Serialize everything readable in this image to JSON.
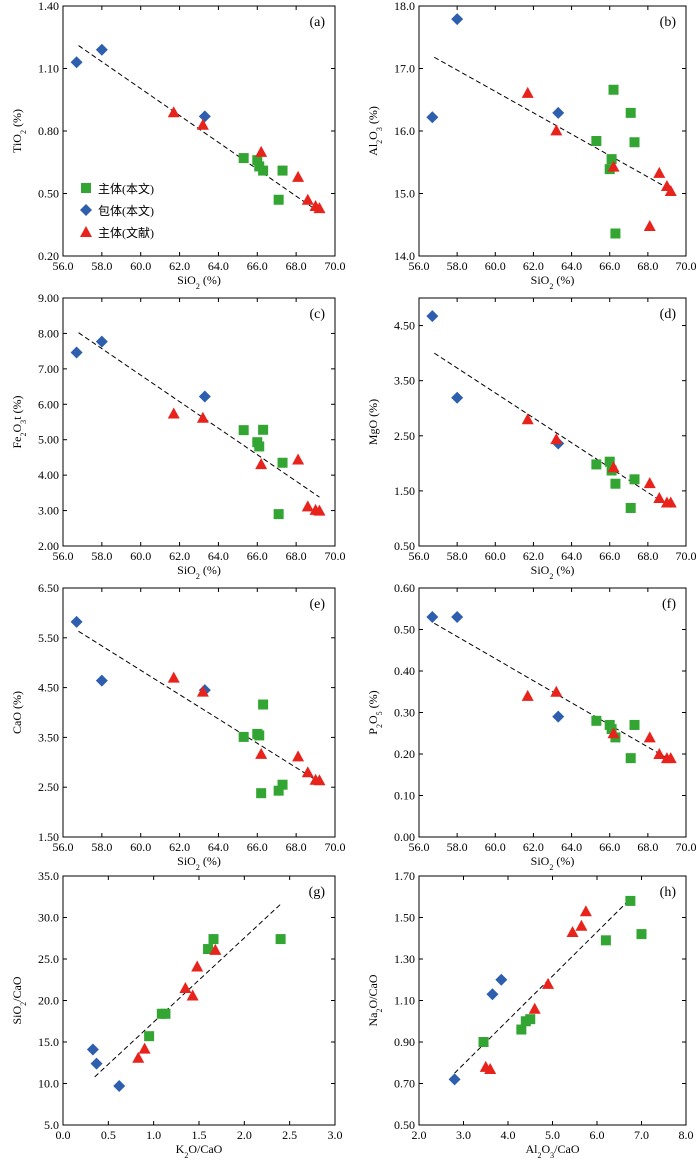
{
  "legend": {
    "entries": [
      {
        "label": "主体(本文)",
        "marker": "square",
        "color": "#33a532"
      },
      {
        "label": "包体(本文)",
        "marker": "diamond",
        "color": "#2e5fae"
      },
      {
        "label": "主体(文献)",
        "marker": "triangle",
        "color": "#e8231c"
      }
    ]
  },
  "chart_data": [
    {
      "type": "scatter",
      "panel": "(a)",
      "xlabel": "SiO₂ (%)",
      "ylabel": "TiO₂ (%)",
      "xlim": [
        56.0,
        70.0
      ],
      "ylim": [
        0.2,
        1.4
      ],
      "xticks": [
        56.0,
        58.0,
        60.0,
        62.0,
        64.0,
        66.0,
        68.0,
        70.0
      ],
      "yticks": [
        0.2,
        0.5,
        0.8,
        1.1,
        1.4
      ],
      "xticklabels": [
        "56.0",
        "58.0",
        "60.0",
        "62.0",
        "64.0",
        "66.0",
        "68.0",
        "70.0"
      ],
      "yticklabels": [
        "0.20",
        "0.50",
        "0.80",
        "1.10",
        "1.40"
      ],
      "trendline": [
        [
          56.8,
          1.21
        ],
        [
          69.2,
          0.41
        ]
      ],
      "series": [
        {
          "name": "主体(本文)",
          "marker": "square",
          "points": [
            [
              65.3,
              0.67
            ],
            [
              66.0,
              0.66
            ],
            [
              66.1,
              0.63
            ],
            [
              66.3,
              0.61
            ],
            [
              67.1,
              0.47
            ],
            [
              67.3,
              0.61
            ]
          ]
        },
        {
          "name": "包体(本文)",
          "marker": "diamond",
          "points": [
            [
              56.7,
              1.13
            ],
            [
              58.0,
              1.19
            ],
            [
              63.3,
              0.87
            ]
          ]
        },
        {
          "name": "主体(文献)",
          "marker": "triangle",
          "points": [
            [
              61.7,
              0.89
            ],
            [
              63.2,
              0.83
            ],
            [
              66.2,
              0.7
            ],
            [
              68.1,
              0.58
            ],
            [
              68.6,
              0.47
            ],
            [
              69.0,
              0.44
            ],
            [
              69.2,
              0.43
            ]
          ]
        }
      ]
    },
    {
      "type": "scatter",
      "panel": "(b)",
      "xlabel": "SiO₂ (%)",
      "ylabel": "Al₂O₃ (%)",
      "xlim": [
        56.0,
        70.0
      ],
      "ylim": [
        14.0,
        18.0
      ],
      "xticks": [
        56.0,
        58.0,
        60.0,
        62.0,
        64.0,
        66.0,
        68.0,
        70.0
      ],
      "yticks": [
        14.0,
        15.0,
        16.0,
        17.0,
        18.0
      ],
      "xticklabels": [
        "56.0",
        "58.0",
        "60.0",
        "62.0",
        "64.0",
        "66.0",
        "68.0",
        "70.0"
      ],
      "yticklabels": [
        "14.0",
        "15.0",
        "16.0",
        "17.0",
        "18.0"
      ],
      "trendline": [
        [
          56.8,
          17.18
        ],
        [
          69.2,
          15.06
        ]
      ],
      "series": [
        {
          "name": "主体(本文)",
          "marker": "square",
          "points": [
            [
              65.3,
              15.84
            ],
            [
              66.0,
              15.39
            ],
            [
              66.1,
              15.55
            ],
            [
              66.2,
              16.66
            ],
            [
              66.3,
              14.36
            ],
            [
              67.1,
              16.29
            ],
            [
              67.3,
              15.82
            ]
          ]
        },
        {
          "name": "包体(本文)",
          "marker": "diamond",
          "points": [
            [
              56.7,
              16.22
            ],
            [
              58.0,
              17.79
            ],
            [
              63.3,
              16.29
            ]
          ]
        },
        {
          "name": "主体(文献)",
          "marker": "triangle",
          "points": [
            [
              61.7,
              16.61
            ],
            [
              63.2,
              16.01
            ],
            [
              66.2,
              15.43
            ],
            [
              68.1,
              14.48
            ],
            [
              68.6,
              15.33
            ],
            [
              69.0,
              15.12
            ],
            [
              69.2,
              15.04
            ]
          ]
        }
      ]
    },
    {
      "type": "scatter",
      "panel": "(c)",
      "xlabel": "SiO₂ (%)",
      "ylabel": "Fe₂O₃t (%)",
      "xlim": [
        56.0,
        70.0
      ],
      "ylim": [
        2.0,
        9.0
      ],
      "xticks": [
        56.0,
        58.0,
        60.0,
        62.0,
        64.0,
        66.0,
        68.0,
        70.0
      ],
      "yticks": [
        2.0,
        3.0,
        4.0,
        5.0,
        6.0,
        7.0,
        8.0,
        9.0
      ],
      "xticklabels": [
        "56.0",
        "58.0",
        "60.0",
        "62.0",
        "64.0",
        "66.0",
        "68.0",
        "70.0"
      ],
      "yticklabels": [
        "2.00",
        "3.00",
        "4.00",
        "5.00",
        "6.00",
        "7.00",
        "8.00",
        "9.00"
      ],
      "trendline": [
        [
          56.8,
          8.02
        ],
        [
          69.2,
          3.38
        ]
      ],
      "series": [
        {
          "name": "主体(本文)",
          "marker": "square",
          "points": [
            [
              65.3,
              5.27
            ],
            [
              66.0,
              4.93
            ],
            [
              66.1,
              4.81
            ],
            [
              66.3,
              5.28
            ],
            [
              67.1,
              2.9
            ],
            [
              67.3,
              4.35
            ]
          ]
        },
        {
          "name": "包体(本文)",
          "marker": "diamond",
          "points": [
            [
              56.7,
              7.46
            ],
            [
              58.0,
              7.77
            ],
            [
              63.3,
              6.22
            ]
          ]
        },
        {
          "name": "主体(文献)",
          "marker": "triangle",
          "points": [
            [
              61.7,
              5.74
            ],
            [
              63.2,
              5.62
            ],
            [
              66.2,
              4.31
            ],
            [
              68.1,
              4.44
            ],
            [
              68.6,
              3.12
            ],
            [
              69.0,
              3.02
            ],
            [
              69.2,
              3.0
            ]
          ]
        }
      ]
    },
    {
      "type": "scatter",
      "panel": "(d)",
      "xlabel": "SiO₂ (%)",
      "ylabel": "MgO (%)",
      "xlim": [
        56.0,
        70.0
      ],
      "ylim": [
        0.5,
        5.0
      ],
      "xticks": [
        56.0,
        58.0,
        60.0,
        62.0,
        64.0,
        66.0,
        68.0,
        70.0
      ],
      "yticks": [
        0.5,
        1.5,
        2.5,
        3.5,
        4.5
      ],
      "xticklabels": [
        "56.0",
        "58.0",
        "60.0",
        "62.0",
        "64.0",
        "66.0",
        "68.0",
        "70.0"
      ],
      "yticklabels": [
        "0.50",
        "1.50",
        "2.50",
        "3.50",
        "4.50"
      ],
      "trendline": [
        [
          56.8,
          4.0
        ],
        [
          69.2,
          1.2
        ]
      ],
      "series": [
        {
          "name": "主体(本文)",
          "marker": "square",
          "points": [
            [
              65.3,
              1.98
            ],
            [
              66.0,
              2.03
            ],
            [
              66.1,
              1.87
            ],
            [
              66.3,
              1.63
            ],
            [
              67.1,
              1.19
            ],
            [
              67.3,
              1.71
            ]
          ]
        },
        {
          "name": "包体(本文)",
          "marker": "diamond",
          "points": [
            [
              56.7,
              4.67
            ],
            [
              58.0,
              3.19
            ],
            [
              63.3,
              2.36
            ]
          ]
        },
        {
          "name": "主体(文献)",
          "marker": "triangle",
          "points": [
            [
              61.7,
              2.8
            ],
            [
              63.2,
              2.44
            ],
            [
              66.2,
              1.93
            ],
            [
              68.1,
              1.64
            ],
            [
              68.6,
              1.37
            ],
            [
              69.0,
              1.29
            ],
            [
              69.2,
              1.29
            ]
          ]
        }
      ]
    },
    {
      "type": "scatter",
      "panel": "(e)",
      "xlabel": "SiO₂ (%)",
      "ylabel": "CaO (%)",
      "xlim": [
        56.0,
        70.0
      ],
      "ylim": [
        1.5,
        6.5
      ],
      "xticks": [
        56.0,
        58.0,
        60.0,
        62.0,
        64.0,
        66.0,
        68.0,
        70.0
      ],
      "yticks": [
        1.5,
        2.5,
        3.5,
        4.5,
        5.5,
        6.5
      ],
      "xticklabels": [
        "56.0",
        "58.0",
        "60.0",
        "62.0",
        "64.0",
        "66.0",
        "68.0",
        "70.0"
      ],
      "yticklabels": [
        "1.50",
        "2.50",
        "3.50",
        "4.50",
        "5.50",
        "6.50"
      ],
      "trendline": [
        [
          56.8,
          5.63
        ],
        [
          69.2,
          2.6
        ]
      ],
      "series": [
        {
          "name": "主体(本文)",
          "marker": "square",
          "points": [
            [
              65.3,
              3.51
            ],
            [
              66.0,
              3.57
            ],
            [
              66.1,
              3.54
            ],
            [
              66.2,
              2.38
            ],
            [
              66.3,
              4.16
            ],
            [
              67.1,
              2.43
            ],
            [
              67.3,
              2.55
            ]
          ]
        },
        {
          "name": "包体(本文)",
          "marker": "diamond",
          "points": [
            [
              56.7,
              5.82
            ],
            [
              58.0,
              4.64
            ],
            [
              63.3,
              4.45
            ]
          ]
        },
        {
          "name": "主体(文献)",
          "marker": "triangle",
          "points": [
            [
              61.7,
              4.7
            ],
            [
              63.2,
              4.42
            ],
            [
              66.2,
              3.17
            ],
            [
              68.1,
              3.12
            ],
            [
              68.6,
              2.8
            ],
            [
              69.0,
              2.65
            ],
            [
              69.2,
              2.64
            ]
          ]
        }
      ]
    },
    {
      "type": "scatter",
      "panel": "(f)",
      "xlabel": "SiO₂ (%)",
      "ylabel": "P₂O₅ (%)",
      "xlim": [
        56.0,
        70.0
      ],
      "ylim": [
        0.0,
        0.6
      ],
      "xticks": [
        56.0,
        58.0,
        60.0,
        62.0,
        64.0,
        66.0,
        68.0,
        70.0
      ],
      "yticks": [
        0.0,
        0.1,
        0.2,
        0.3,
        0.4,
        0.5,
        0.6
      ],
      "xticklabels": [
        "56.0",
        "58.0",
        "60.0",
        "62.0",
        "64.0",
        "66.0",
        "68.0",
        "70.0"
      ],
      "yticklabels": [
        "0.00",
        "0.10",
        "0.20",
        "0.30",
        "0.40",
        "0.50",
        "0.60"
      ],
      "trendline": [
        [
          56.8,
          0.515
        ],
        [
          69.2,
          0.185
        ]
      ],
      "series": [
        {
          "name": "主体(本文)",
          "marker": "square",
          "points": [
            [
              65.3,
              0.28
            ],
            [
              66.0,
              0.27
            ],
            [
              66.1,
              0.26
            ],
            [
              66.3,
              0.24
            ],
            [
              67.1,
              0.19
            ],
            [
              67.3,
              0.27
            ]
          ]
        },
        {
          "name": "包体(本文)",
          "marker": "diamond",
          "points": [
            [
              56.7,
              0.53
            ],
            [
              58.0,
              0.53
            ],
            [
              63.3,
              0.29
            ]
          ]
        },
        {
          "name": "主体(文献)",
          "marker": "triangle",
          "points": [
            [
              61.7,
              0.34
            ],
            [
              63.2,
              0.35
            ],
            [
              66.2,
              0.25
            ],
            [
              68.1,
              0.24
            ],
            [
              68.6,
              0.2
            ],
            [
              69.0,
              0.19
            ],
            [
              69.2,
              0.19
            ]
          ]
        }
      ]
    },
    {
      "type": "scatter",
      "panel": "(g)",
      "xlabel": "K₂O/CaO",
      "ylabel": "SiO₂/CaO",
      "xlim": [
        0.0,
        3.0
      ],
      "ylim": [
        5.0,
        35.0
      ],
      "xticks": [
        0.0,
        0.5,
        1.0,
        1.5,
        2.0,
        2.5,
        3.0
      ],
      "yticks": [
        5.0,
        10.0,
        15.0,
        20.0,
        25.0,
        30.0,
        35.0
      ],
      "xticklabels": [
        "0.0",
        "0.5",
        "1.0",
        "1.5",
        "2.0",
        "2.5",
        "3.0"
      ],
      "yticklabels": [
        "5.0",
        "10.0",
        "15.0",
        "20.0",
        "25.0",
        "30.0",
        "35.0"
      ],
      "trendline": [
        [
          0.35,
          10.8
        ],
        [
          2.4,
          31.6
        ]
      ],
      "series": [
        {
          "name": "主体(本文)",
          "marker": "square",
          "points": [
            [
              0.95,
              15.7
            ],
            [
              1.09,
              18.4
            ],
            [
              1.13,
              18.4
            ],
            [
              1.6,
              26.2
            ],
            [
              1.66,
              27.4
            ],
            [
              2.4,
              27.4
            ]
          ]
        },
        {
          "name": "包体(本文)",
          "marker": "diamond",
          "points": [
            [
              0.33,
              14.1
            ],
            [
              0.37,
              12.4
            ],
            [
              0.62,
              9.7
            ]
          ]
        },
        {
          "name": "主体(文献)",
          "marker": "triangle",
          "points": [
            [
              0.83,
              13.1
            ],
            [
              0.9,
              14.2
            ],
            [
              1.35,
              21.5
            ],
            [
              1.43,
              20.6
            ],
            [
              1.48,
              24.1
            ],
            [
              1.68,
              26.1
            ]
          ]
        }
      ]
    },
    {
      "type": "scatter",
      "panel": "(h)",
      "xlabel": "Al₂O₃/CaO",
      "ylabel": "Na₂O/CaO",
      "xlim": [
        2.0,
        8.0
      ],
      "ylim": [
        0.5,
        1.7
      ],
      "xticks": [
        2.0,
        3.0,
        4.0,
        5.0,
        6.0,
        7.0,
        8.0
      ],
      "yticks": [
        0.5,
        0.7,
        0.9,
        1.1,
        1.3,
        1.5,
        1.7
      ],
      "xticklabels": [
        "2.0",
        "3.0",
        "4.0",
        "5.0",
        "6.0",
        "7.0",
        "8.0"
      ],
      "yticklabels": [
        "0.50",
        "0.70",
        "0.90",
        "1.10",
        "1.30",
        "1.50",
        "1.70"
      ],
      "trendline": [
        [
          2.8,
          0.75
        ],
        [
          6.75,
          1.59
        ]
      ],
      "series": [
        {
          "name": "主体(本文)",
          "marker": "square",
          "points": [
            [
              3.45,
              0.9
            ],
            [
              4.3,
              0.96
            ],
            [
              4.4,
              1.0
            ],
            [
              4.5,
              1.01
            ],
            [
              6.2,
              1.39
            ],
            [
              6.75,
              1.58
            ],
            [
              7.0,
              1.42
            ]
          ]
        },
        {
          "name": "包体(本文)",
          "marker": "diamond",
          "points": [
            [
              2.8,
              0.72
            ],
            [
              3.65,
              1.13
            ],
            [
              3.85,
              1.2
            ]
          ]
        },
        {
          "name": "主体(文献)",
          "marker": "triangle",
          "points": [
            [
              3.5,
              0.78
            ],
            [
              3.6,
              0.77
            ],
            [
              4.6,
              1.06
            ],
            [
              4.9,
              1.18
            ],
            [
              5.45,
              1.43
            ],
            [
              5.65,
              1.46
            ],
            [
              5.75,
              1.53
            ]
          ]
        }
      ]
    }
  ]
}
